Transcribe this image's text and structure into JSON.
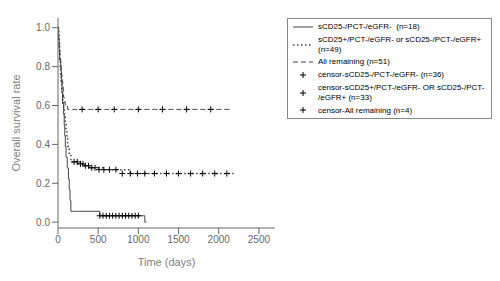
{
  "chart_data": {
    "type": "line",
    "xlabel": "Time (days)",
    "ylabel": "Overall survival rate",
    "xlim": [
      0,
      2700
    ],
    "ylim": [
      -0.03,
      1.05
    ],
    "xticks": [
      0,
      500,
      1000,
      1500,
      2000,
      2500
    ],
    "yticks": [
      {
        "value": 0.0,
        "label": "0.0"
      },
      0.2,
      0.4,
      0.6,
      0.8,
      {
        "value": 1.0,
        "label": "1.0"
      }
    ],
    "grid": false,
    "legend": "upper right",
    "series": [
      {
        "name": "sCD25-/PCT-/eGFR-  (n=18)",
        "type": "line",
        "color": "#444444",
        "line_style": "solid",
        "x": [
          0,
          7,
          7,
          14,
          14,
          21,
          21,
          28,
          35,
          35,
          42,
          42,
          49,
          49,
          56,
          56,
          63,
          70,
          70,
          77,
          77,
          84,
          84,
          91,
          91,
          100,
          100,
          110,
          115,
          120,
          130,
          140,
          150,
          160,
          175,
          190,
          210,
          230,
          260,
          280,
          310,
          350,
          380,
          420,
          460,
          500,
          520,
          560,
          600,
          640,
          680,
          720,
          780,
          840,
          900,
          960,
          1020,
          1080,
          1100
        ],
        "values": [
          1.0,
          1.0,
          0.944,
          0.944,
          0.889,
          0.889,
          0.833,
          0.833,
          0.833,
          0.778,
          0.778,
          0.722,
          0.722,
          0.667,
          0.667,
          0.611,
          0.611,
          0.611,
          0.556,
          0.556,
          0.5,
          0.5,
          0.444,
          0.444,
          0.389,
          0.389,
          0.333,
          0.333,
          0.278,
          0.278,
          0.222,
          0.167,
          0.111,
          0.056,
          0.056,
          0.056,
          0.056,
          0.056,
          0.056,
          0.056,
          0.056,
          0.056,
          0.056,
          0.056,
          0.056,
          0.056,
          0.033,
          0.033,
          0.033,
          0.033,
          0.033,
          0.033,
          0.033,
          0.033,
          0.033,
          0.033,
          0.033,
          0.0,
          0.0
        ]
      },
      {
        "name": "sCD25+/PCT-/eGFR- or sCD25-/PCT-/eGFR+\n(n=49)",
        "type": "line",
        "color": "#444444",
        "line_style": "dotted",
        "x": [
          0,
          5,
          5,
          10,
          15,
          20,
          25,
          30,
          35,
          40,
          50,
          60,
          70,
          80,
          90,
          100,
          110,
          120,
          140,
          160,
          180,
          200,
          220,
          240,
          260,
          280,
          320,
          360,
          400,
          450,
          500,
          580,
          650,
          730,
          810,
          900,
          990,
          1100,
          1200,
          1350,
          1500,
          1650,
          1800,
          1950,
          2100,
          2200
        ],
        "values": [
          1.0,
          1.0,
          0.98,
          0.96,
          0.92,
          0.88,
          0.84,
          0.8,
          0.76,
          0.72,
          0.67,
          0.63,
          0.59,
          0.55,
          0.51,
          0.47,
          0.43,
          0.39,
          0.35,
          0.31,
          0.31,
          0.31,
          0.31,
          0.3,
          0.3,
          0.3,
          0.29,
          0.29,
          0.28,
          0.28,
          0.28,
          0.27,
          0.27,
          0.27,
          0.27,
          0.25,
          0.25,
          0.25,
          0.25,
          0.25,
          0.25,
          0.25,
          0.25,
          0.25,
          0.25,
          0.25
        ]
      },
      {
        "name": "All remaining (n=51)",
        "type": "line",
        "color": "#444444",
        "line_style": "dashed",
        "x": [
          0,
          3,
          3,
          6,
          6,
          9,
          9,
          12,
          12,
          15,
          15,
          18,
          18,
          21,
          21,
          25,
          25,
          30,
          30,
          35,
          35,
          40,
          40,
          45,
          45,
          50,
          50,
          55,
          55,
          60,
          60,
          65,
          65,
          70,
          70,
          80,
          80,
          90,
          90,
          100,
          100,
          110,
          110,
          120,
          120,
          150,
          150,
          200,
          250,
          300,
          350,
          400,
          500,
          600,
          700,
          800,
          900,
          1000,
          1100,
          1200,
          1400,
          1600,
          1800,
          2000,
          2150
        ],
        "values": [
          1.0,
          1.0,
          0.98,
          0.98,
          0.96,
          0.96,
          0.94,
          0.94,
          0.92,
          0.92,
          0.9,
          0.9,
          0.88,
          0.88,
          0.86,
          0.86,
          0.84,
          0.84,
          0.82,
          0.82,
          0.8,
          0.8,
          0.78,
          0.78,
          0.76,
          0.76,
          0.74,
          0.74,
          0.72,
          0.72,
          0.7,
          0.7,
          0.68,
          0.68,
          0.64,
          0.64,
          0.62,
          0.62,
          0.6,
          0.6,
          0.6,
          0.6,
          0.6,
          0.6,
          0.58,
          0.58,
          0.58,
          0.58,
          0.58,
          0.58,
          0.58,
          0.58,
          0.58,
          0.58,
          0.58,
          0.58,
          0.58,
          0.58,
          0.58,
          0.58,
          0.58,
          0.58,
          0.58,
          0.58,
          0.58
        ]
      },
      {
        "name": "censor-sCD25-/PCT-/eGFR- (n=36)",
        "type": "scatter",
        "marker": "+",
        "color": "#000000",
        "x": [
          520,
          560,
          600,
          640,
          680,
          720,
          760,
          800,
          840,
          880,
          920,
          960,
          1000
        ],
        "values": [
          0.033,
          0.033,
          0.033,
          0.033,
          0.033,
          0.033,
          0.033,
          0.033,
          0.033,
          0.033,
          0.033,
          0.033,
          0.033
        ]
      },
      {
        "name": "censor-sCD25+/PCT-/eGFR- OR sCD25-/PCT-\n/eGFR+ (n=33)",
        "type": "scatter",
        "marker": "+",
        "color": "#000000",
        "x": [
          200,
          240,
          280,
          310,
          340,
          380,
          420,
          460,
          510,
          570,
          640,
          720,
          800,
          900,
          990,
          1080,
          1200,
          1350,
          1500,
          1650,
          1800,
          1950,
          2100
        ],
        "values": [
          0.31,
          0.31,
          0.3,
          0.3,
          0.29,
          0.29,
          0.28,
          0.28,
          0.27,
          0.27,
          0.27,
          0.27,
          0.25,
          0.25,
          0.25,
          0.25,
          0.25,
          0.25,
          0.25,
          0.25,
          0.25,
          0.25,
          0.25
        ]
      },
      {
        "name": "censor-All remaining (n=4)",
        "type": "scatter",
        "marker": "+",
        "color": "#000000",
        "x": [
          300,
          500,
          700,
          1000,
          1300,
          1600,
          1900
        ],
        "values": [
          0.58,
          0.58,
          0.58,
          0.58,
          0.58,
          0.58,
          0.58
        ]
      }
    ]
  }
}
